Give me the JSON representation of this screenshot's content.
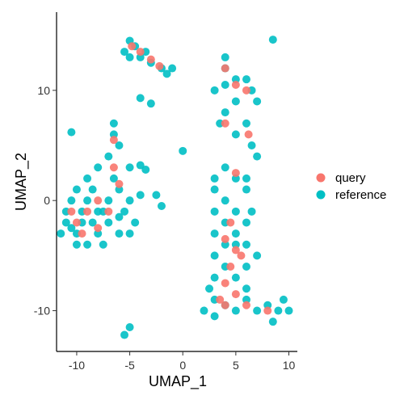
{
  "chart_data": {
    "type": "scatter",
    "xlabel": "UMAP_1",
    "ylabel": "UMAP_2",
    "xlim": [
      -11.9,
      10.8
    ],
    "ylim": [
      -13.7,
      17.1
    ],
    "xticks": [
      -10,
      -5,
      0,
      5,
      10
    ],
    "yticks": [
      -10,
      0,
      10
    ],
    "series": [
      {
        "name": "reference",
        "color": "#00BFC4",
        "x": [
          -11,
          -11,
          -10.5,
          -10,
          -10,
          -9.5,
          -9,
          -9,
          -8.5,
          -8,
          -8,
          -7.5,
          -7,
          -7,
          -6.5,
          -6,
          -6,
          -5.5,
          -5,
          -5,
          -11.5,
          -10,
          -9,
          -8,
          -7,
          -6.5,
          -6.5,
          -6,
          -5,
          -4,
          -3.5,
          -2.5,
          -2,
          -4,
          -9.5,
          -8.5,
          -7.5,
          -6,
          -4.5,
          -10.5,
          -5,
          -4.5,
          -5.5,
          -4,
          -3,
          -2,
          -1.5,
          -1,
          -3.5,
          -5,
          4,
          4,
          3,
          4,
          5,
          6,
          6.5,
          7,
          5,
          4,
          3.5,
          5,
          6,
          6.5,
          7,
          4,
          3,
          5,
          6,
          3,
          4,
          6,
          3,
          4,
          5,
          6,
          3,
          4,
          5,
          6,
          7,
          3,
          4,
          6,
          3,
          5,
          6,
          2.5,
          3,
          4,
          5,
          6,
          7,
          8,
          9,
          9.5,
          10,
          8.5,
          3,
          2,
          5,
          6.5,
          -10.5,
          8.5,
          -3,
          -5.5,
          -5,
          0,
          -4
        ],
        "values": [
          -2,
          -1,
          0,
          1,
          -3,
          -2,
          0,
          -4,
          1,
          -1,
          -3,
          -4,
          -2,
          0,
          2,
          -3,
          1,
          -1,
          -3,
          0,
          -3,
          -4,
          2,
          3,
          4,
          6,
          7,
          5,
          3,
          3.2,
          2.8,
          0.5,
          -0.5,
          0.5,
          -1,
          -2,
          -1,
          -1.5,
          -2,
          -2.5,
          14.5,
          14,
          13.5,
          13,
          12.5,
          12,
          11.5,
          12,
          13.5,
          13,
          13,
          12,
          10,
          10.5,
          11,
          11,
          10,
          9,
          9,
          8,
          7,
          6,
          7,
          5,
          4,
          3,
          2,
          2,
          2,
          1,
          0,
          1,
          -1,
          -2,
          -1,
          -2,
          -3,
          -4,
          -4,
          -4,
          -5,
          -5,
          -6,
          -6,
          -7,
          -7,
          -8,
          -8,
          -9,
          -9.5,
          -10,
          -9,
          -10,
          -9.5,
          -10,
          -9,
          -10,
          -11,
          -10.5,
          -10,
          -3,
          -1,
          6.2,
          14.6,
          8.8,
          -12.2,
          -11.5,
          4.5,
          9.3
        ]
      },
      {
        "name": "query",
        "color": "#F8766D",
        "x": [
          -10,
          -9,
          -8,
          -7,
          -9.5,
          -8,
          -6.5,
          -6.5,
          -6,
          -10.5,
          -4.8,
          -4,
          -3,
          -2.2,
          4,
          5,
          6,
          4,
          6.2,
          5,
          4.5,
          4,
          5,
          4.5,
          4,
          5,
          4,
          6,
          8,
          3.5,
          5.5
        ],
        "values": [
          -2,
          -1,
          0,
          -1,
          -3,
          -2.5,
          3,
          5.5,
          1.5,
          -1,
          14,
          13.5,
          12.8,
          12.2,
          12,
          10.5,
          10,
          7,
          6,
          2.5,
          -2,
          -3.5,
          -4.5,
          -6,
          -7.5,
          -8.5,
          -9.5,
          -9.5,
          -10,
          -9,
          -5
        ]
      }
    ]
  }
}
